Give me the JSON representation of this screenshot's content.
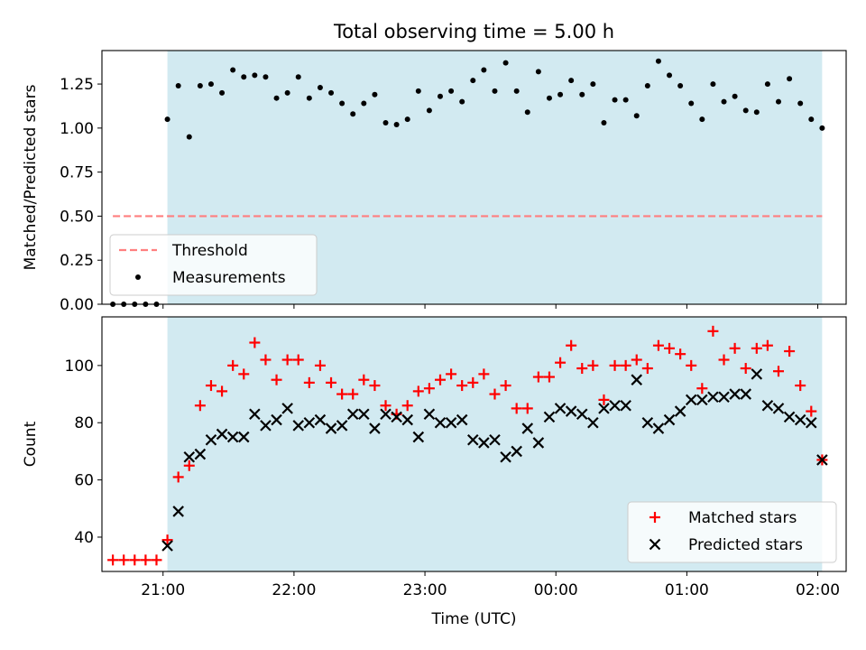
{
  "title": "Total observing time = 5.00 h",
  "colors": {
    "shade": "#add8e6",
    "threshold": "#ff7f7f",
    "measurement": "#000000",
    "matched": "#ff0000",
    "predicted": "#000000"
  },
  "chart_data": [
    {
      "type": "scatter",
      "panel": "top",
      "ylabel": "Matched/Predicted stars",
      "ylim": [
        0,
        1.44
      ],
      "yticks": [
        0.0,
        0.25,
        0.5,
        0.75,
        1.0,
        1.25
      ],
      "ytick_labels": [
        "0.00",
        "0.25",
        "0.50",
        "0.75",
        "1.00",
        "1.25"
      ],
      "xlim": [
        "20:32",
        "02:13"
      ],
      "xticks": [
        "21:00",
        "22:00",
        "23:00",
        "00:00",
        "01:00",
        "02:00"
      ],
      "shaded_interval": [
        "21:02",
        "02:02"
      ],
      "legend_position": "lower-left",
      "threshold": {
        "name": "Threshold",
        "value": 0.5,
        "x_range": [
          "20:37",
          "02:02"
        ]
      },
      "series": [
        {
          "name": "Measurements",
          "x": [
            "20:37",
            "20:42",
            "20:47",
            "20:52",
            "20:57",
            "21:02",
            "21:07",
            "21:12",
            "21:17",
            "21:22",
            "21:27",
            "21:32",
            "21:37",
            "21:42",
            "21:47",
            "21:52",
            "21:57",
            "22:02",
            "22:07",
            "22:12",
            "22:17",
            "22:22",
            "22:27",
            "22:32",
            "22:37",
            "22:42",
            "22:47",
            "22:52",
            "22:57",
            "23:02",
            "23:07",
            "23:12",
            "23:17",
            "23:22",
            "23:27",
            "23:32",
            "23:37",
            "23:42",
            "23:47",
            "23:52",
            "23:57",
            "00:02",
            "00:07",
            "00:12",
            "00:17",
            "00:22",
            "00:27",
            "00:32",
            "00:37",
            "00:42",
            "00:47",
            "00:52",
            "00:57",
            "01:02",
            "01:07",
            "01:12",
            "01:17",
            "01:22",
            "01:27",
            "01:32",
            "01:37",
            "01:42",
            "01:47",
            "01:52",
            "01:57",
            "02:02"
          ],
          "y": [
            0.0,
            0.0,
            0.0,
            0.0,
            0.0,
            1.05,
            1.24,
            0.95,
            1.24,
            1.25,
            1.2,
            1.33,
            1.29,
            1.3,
            1.29,
            1.17,
            1.2,
            1.29,
            1.17,
            1.23,
            1.2,
            1.14,
            1.08,
            1.14,
            1.19,
            1.03,
            1.02,
            1.05,
            1.21,
            1.1,
            1.18,
            1.21,
            1.15,
            1.27,
            1.33,
            1.21,
            1.37,
            1.21,
            1.09,
            1.32,
            1.17,
            1.19,
            1.27,
            1.19,
            1.25,
            1.03,
            1.16,
            1.16,
            1.07,
            1.24,
            1.38,
            1.3,
            1.24,
            1.14,
            1.05,
            1.25,
            1.15,
            1.18,
            1.1,
            1.09,
            1.25,
            1.15,
            1.28,
            1.14,
            1.05,
            1.0
          ]
        }
      ]
    },
    {
      "type": "scatter",
      "panel": "bottom",
      "xlabel": "Time (UTC)",
      "ylabel": "Count",
      "ylim": [
        28,
        117
      ],
      "yticks": [
        40,
        60,
        80,
        100
      ],
      "ytick_labels": [
        "40",
        "60",
        "80",
        "100"
      ],
      "xlim": [
        "20:32",
        "02:13"
      ],
      "xticks": [
        "21:00",
        "22:00",
        "23:00",
        "00:00",
        "01:00",
        "02:00"
      ],
      "xtick_labels": [
        "21:00",
        "22:00",
        "23:00",
        "00:00",
        "01:00",
        "02:00"
      ],
      "shaded_interval": [
        "21:02",
        "02:02"
      ],
      "legend_position": "lower-right",
      "series": [
        {
          "name": "Matched stars",
          "marker": "plus",
          "x": [
            "20:37",
            "20:42",
            "20:47",
            "20:52",
            "20:57",
            "21:02",
            "21:07",
            "21:12",
            "21:17",
            "21:22",
            "21:27",
            "21:32",
            "21:37",
            "21:42",
            "21:47",
            "21:52",
            "21:57",
            "22:02",
            "22:07",
            "22:12",
            "22:17",
            "22:22",
            "22:27",
            "22:32",
            "22:37",
            "22:42",
            "22:47",
            "22:52",
            "22:57",
            "23:02",
            "23:07",
            "23:12",
            "23:17",
            "23:22",
            "23:27",
            "23:32",
            "23:37",
            "23:42",
            "23:47",
            "23:52",
            "23:57",
            "00:02",
            "00:07",
            "00:12",
            "00:17",
            "00:22",
            "00:27",
            "00:32",
            "00:37",
            "00:42",
            "00:47",
            "00:52",
            "00:57",
            "01:02",
            "01:07",
            "01:12",
            "01:17",
            "01:22",
            "01:27",
            "01:32",
            "01:37",
            "01:42",
            "01:47",
            "01:52",
            "01:57",
            "02:02"
          ],
          "y": [
            32,
            32,
            32,
            32,
            32,
            39,
            61,
            65,
            86,
            93,
            91,
            100,
            97,
            108,
            102,
            95,
            102,
            102,
            94,
            100,
            94,
            90,
            90,
            95,
            93,
            86,
            83,
            86,
            91,
            92,
            95,
            97,
            93,
            94,
            97,
            90,
            93,
            85,
            85,
            96,
            96,
            101,
            107,
            99,
            100,
            88,
            100,
            100,
            102,
            99,
            107,
            106,
            104,
            100,
            92,
            112,
            102,
            106,
            99,
            106,
            107,
            98,
            105,
            93,
            84,
            67
          ]
        },
        {
          "name": "Predicted stars",
          "marker": "x",
          "x": [
            "21:02",
            "21:07",
            "21:12",
            "21:17",
            "21:22",
            "21:27",
            "21:32",
            "21:37",
            "21:42",
            "21:47",
            "21:52",
            "21:57",
            "22:02",
            "22:07",
            "22:12",
            "22:17",
            "22:22",
            "22:27",
            "22:32",
            "22:37",
            "22:42",
            "22:47",
            "22:52",
            "22:57",
            "23:02",
            "23:07",
            "23:12",
            "23:17",
            "23:22",
            "23:27",
            "23:32",
            "23:37",
            "23:42",
            "23:47",
            "23:52",
            "23:57",
            "00:02",
            "00:07",
            "00:12",
            "00:17",
            "00:22",
            "00:27",
            "00:32",
            "00:37",
            "00:42",
            "00:47",
            "00:52",
            "00:57",
            "01:02",
            "01:07",
            "01:12",
            "01:17",
            "01:22",
            "01:27",
            "01:32",
            "01:37",
            "01:42",
            "01:47",
            "01:52",
            "01:57",
            "02:02"
          ],
          "y": [
            37,
            49,
            68,
            69,
            74,
            76,
            75,
            75,
            83,
            79,
            81,
            85,
            79,
            80,
            81,
            78,
            79,
            83,
            83,
            78,
            83,
            82,
            81,
            75,
            83,
            80,
            80,
            81,
            74,
            73,
            74,
            68,
            70,
            78,
            73,
            82,
            85,
            84,
            83,
            80,
            85,
            86,
            86,
            95,
            80,
            78,
            81,
            84,
            88,
            88,
            89,
            89,
            90,
            90,
            97,
            86,
            85,
            82,
            81,
            80,
            67
          ]
        }
      ]
    }
  ]
}
